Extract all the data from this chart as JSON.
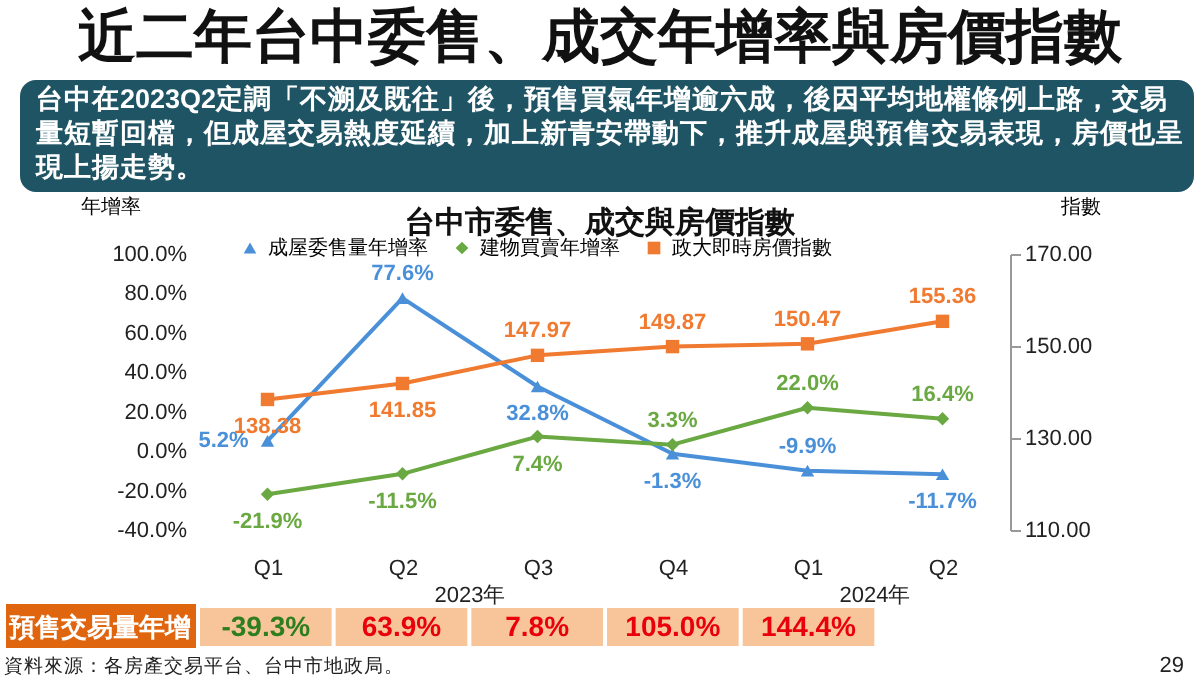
{
  "chart_data": [
    {
      "type": "line",
      "title": "近二年台中委售、成交年增率與房價指數",
      "subtitle": "台中在2023Q2定調「不溯及既往」後，預售買氣年增逾六成，後因平均地權條例上路，交易量短暫回檔，但成屋交易熱度延續，加上新青安帶動下，推升成屋與預售交易表現，房價也呈現上揚走勢。",
      "annotations": [
        "台中市委售、成交與房價指數",
        "2023年",
        "2024年",
        "資料來源：各房產交易平台、台中市地政局。",
        "29"
      ],
      "categories": [
        "Q1",
        "Q2",
        "Q3",
        "Q4",
        "Q1",
        "Q2"
      ],
      "ylabel": "年增率",
      "y2label": "指數",
      "ylim": [
        -40,
        100
      ],
      "yticks": [
        {
          "value": -40,
          "label": "-40.0%"
        },
        {
          "value": -20,
          "label": "-20.0%"
        },
        {
          "value": 0,
          "label": "0.0%"
        },
        {
          "value": 20,
          "label": "20.0%"
        },
        {
          "value": 40,
          "label": "40.0%"
        },
        {
          "value": 60,
          "label": "60.0%"
        },
        {
          "value": 80,
          "label": "80.0%"
        },
        {
          "value": 100,
          "label": "100.0%"
        }
      ],
      "y2lim": [
        110,
        170
      ],
      "y2ticks": [
        {
          "value": 110,
          "label": "110.00"
        },
        {
          "value": 130,
          "label": "130.00"
        },
        {
          "value": 150,
          "label": "150.00"
        },
        {
          "value": 170,
          "label": "170.00"
        }
      ],
      "legend": "top",
      "grid": false,
      "line_style": "solid",
      "series": [
        {
          "name": "成屋委售量年增率",
          "color": "#4a90d9",
          "marker": "triangle",
          "values": [
            5.2,
            77.6,
            32.8,
            -1.3,
            -9.9,
            -11.7
          ],
          "value_labels": [
            "5.2%",
            "77.6%",
            "32.8%",
            "-1.3%",
            "-9.9%",
            "-11.7%"
          ]
        },
        {
          "name": "建物買賣年增率",
          "color": "#6aa842",
          "marker": "diamond",
          "values": [
            -21.9,
            -11.5,
            7.4,
            3.3,
            22.0,
            16.4
          ],
          "value_labels": [
            "-21.9%",
            "-11.5%",
            "7.4%",
            "3.3%",
            "22.0%",
            "16.4%"
          ]
        },
        {
          "name": "政大即時房價指數",
          "color": "#f07a30",
          "marker": "square",
          "axis": "y2",
          "values": [
            138.38,
            141.85,
            147.97,
            149.87,
            150.47,
            155.36
          ],
          "value_labels": [
            "138.38",
            "141.85",
            "147.97",
            "149.87",
            "150.47",
            "155.36"
          ]
        }
      ]
    },
    {
      "type": "other",
      "title": "預售交易量年增",
      "categories": [
        null,
        null,
        null,
        null,
        null
      ],
      "value_labels": [
        "-39.3%",
        "63.9%",
        "7.8%",
        "105.0%",
        "144.4%"
      ],
      "colors": [
        "#2e7d1e",
        "#e8000b",
        "#e8000b",
        "#e8000b",
        "#e8000b"
      ]
    }
  ]
}
